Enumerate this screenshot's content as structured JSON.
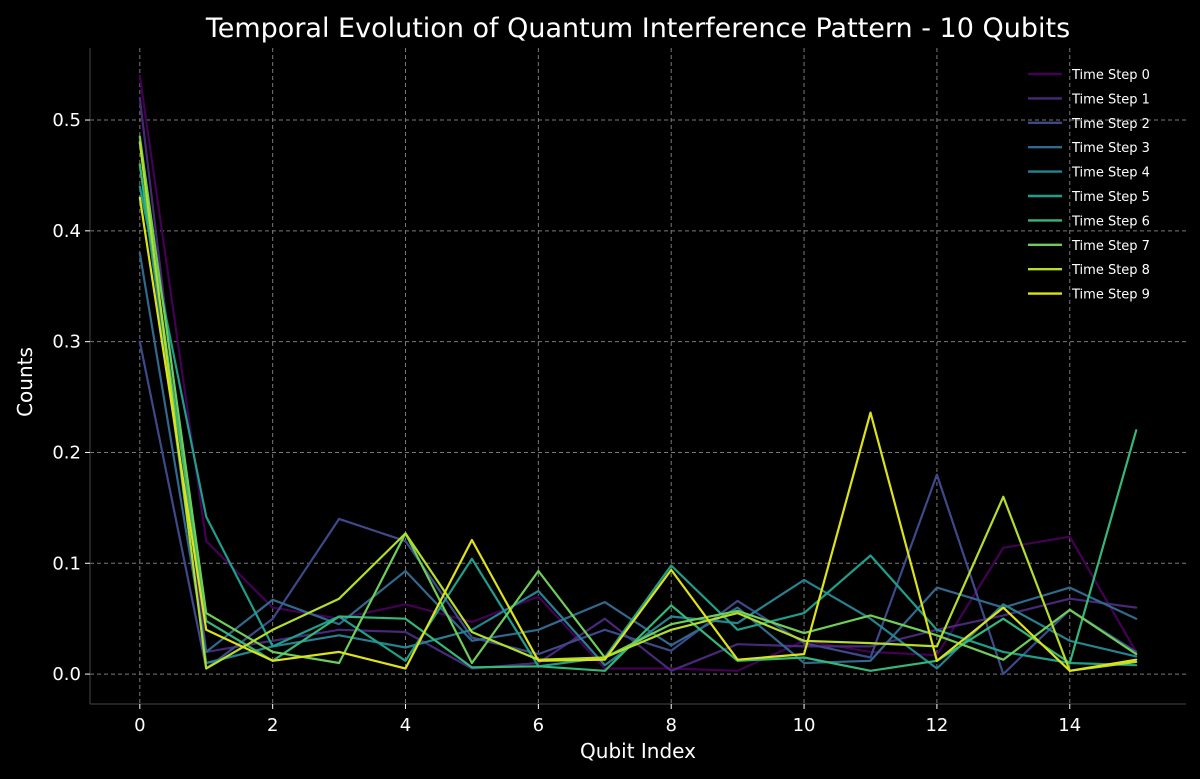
{
  "chart_data": {
    "type": "line",
    "title": "Temporal Evolution of Quantum Interference Pattern - 10 Qubits",
    "xlabel": "Qubit Index",
    "ylabel": "Counts",
    "xlim": [
      -0.75,
      15.75
    ],
    "ylim": [
      -0.027,
      0.565
    ],
    "xticks": [
      0,
      2,
      4,
      6,
      8,
      10,
      12,
      14
    ],
    "yticks": [
      0.0,
      0.1,
      0.2,
      0.3,
      0.4,
      0.5
    ],
    "ytick_labels": [
      "0.0",
      "0.1",
      "0.2",
      "0.3",
      "0.4",
      "0.5"
    ],
    "grid": true,
    "legend_position": "top-right",
    "x": [
      0,
      1,
      2,
      3,
      4,
      5,
      6,
      7,
      8,
      9,
      10,
      11,
      12,
      13,
      14,
      15
    ],
    "series": [
      {
        "name": "Time Step 0",
        "color": "#440154",
        "values": [
          0.54,
          0.12,
          0.06,
          0.05,
          0.063,
          0.047,
          0.07,
          0.005,
          0.005,
          0.003,
          0.03,
          0.02,
          0.017,
          0.114,
          0.124,
          0.02
        ]
      },
      {
        "name": "Time Step 1",
        "color": "#482878",
        "values": [
          0.52,
          0.02,
          0.03,
          0.04,
          0.038,
          0.005,
          0.01,
          0.05,
          0.003,
          0.027,
          0.025,
          0.025,
          0.04,
          0.053,
          0.068,
          0.06
        ]
      },
      {
        "name": "Time Step 2",
        "color": "#3e4989",
        "values": [
          0.3,
          0.005,
          0.05,
          0.14,
          0.12,
          0.033,
          0.018,
          0.04,
          0.021,
          0.066,
          0.028,
          0.015,
          0.18,
          0.0,
          0.058,
          0.02
        ]
      },
      {
        "name": "Time Step 3",
        "color": "#31688e",
        "values": [
          0.38,
          0.02,
          0.067,
          0.045,
          0.093,
          0.03,
          0.04,
          0.065,
          0.026,
          0.06,
          0.01,
          0.012,
          0.078,
          0.06,
          0.078,
          0.05
        ]
      },
      {
        "name": "Time Step 4",
        "color": "#26828e",
        "values": [
          0.46,
          0.01,
          0.025,
          0.035,
          0.024,
          0.04,
          0.075,
          0.008,
          0.052,
          0.046,
          0.085,
          0.05,
          0.005,
          0.063,
          0.03,
          0.016
        ]
      },
      {
        "name": "Time Step 5",
        "color": "#1f9e89",
        "values": [
          0.44,
          0.142,
          0.025,
          0.052,
          0.012,
          0.104,
          0.007,
          0.015,
          0.098,
          0.04,
          0.055,
          0.107,
          0.04,
          0.02,
          0.01,
          0.008
        ]
      },
      {
        "name": "Time Step 6",
        "color": "#35b779",
        "values": [
          0.46,
          0.048,
          0.012,
          0.052,
          0.05,
          0.006,
          0.007,
          0.003,
          0.062,
          0.012,
          0.015,
          0.003,
          0.012,
          0.05,
          0.01,
          0.22
        ]
      },
      {
        "name": "Time Step 7",
        "color": "#6ece58",
        "values": [
          0.485,
          0.055,
          0.02,
          0.01,
          0.127,
          0.01,
          0.093,
          0.015,
          0.045,
          0.057,
          0.037,
          0.053,
          0.035,
          0.013,
          0.058,
          0.018
        ]
      },
      {
        "name": "Time Step 8",
        "color": "#b5de2b",
        "values": [
          0.48,
          0.005,
          0.04,
          0.068,
          0.127,
          0.038,
          0.013,
          0.015,
          0.04,
          0.055,
          0.03,
          0.028,
          0.025,
          0.16,
          0.003,
          0.011
        ]
      },
      {
        "name": "Time Step 9",
        "color": "#dde318",
        "values": [
          0.43,
          0.04,
          0.012,
          0.02,
          0.005,
          0.121,
          0.012,
          0.013,
          0.094,
          0.013,
          0.018,
          0.236,
          0.012,
          0.06,
          0.003,
          0.013
        ]
      }
    ]
  }
}
